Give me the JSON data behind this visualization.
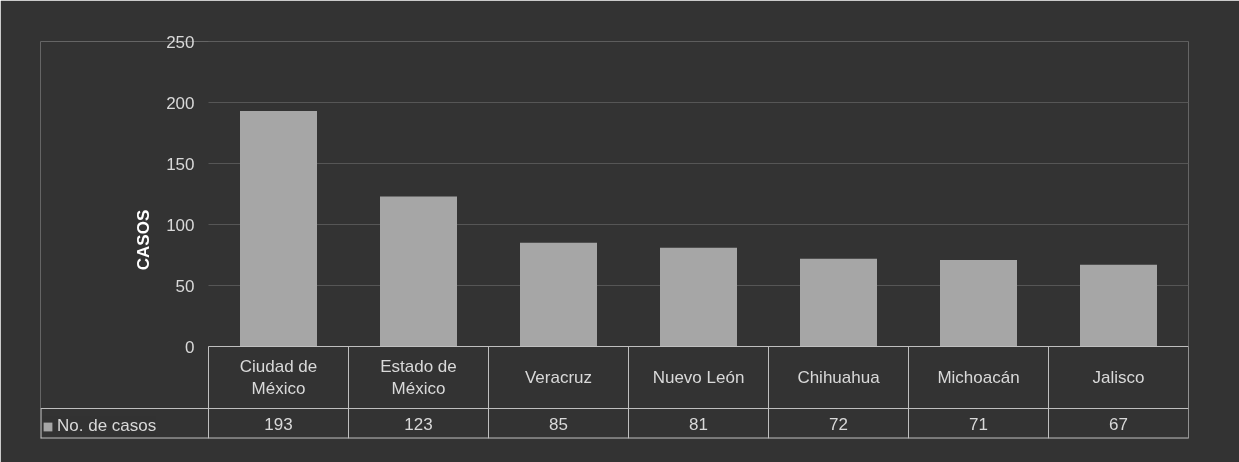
{
  "chart_data": {
    "type": "bar",
    "ylabel": "CASOS",
    "categories": [
      "Ciudad de México",
      "Estado de México",
      "Veracruz",
      "Nuevo León",
      "Chihuahua",
      "Michoacán",
      "Jalisco"
    ],
    "series": [
      {
        "name": "No. de casos",
        "color": "#a6a6a6",
        "values": [
          193,
          123,
          85,
          81,
          72,
          71,
          67
        ]
      }
    ],
    "ylim": [
      0,
      250
    ],
    "yticks": [
      0,
      50,
      100,
      150,
      200,
      250
    ],
    "grid": "y",
    "legend": "bottom",
    "data_labels": true
  }
}
